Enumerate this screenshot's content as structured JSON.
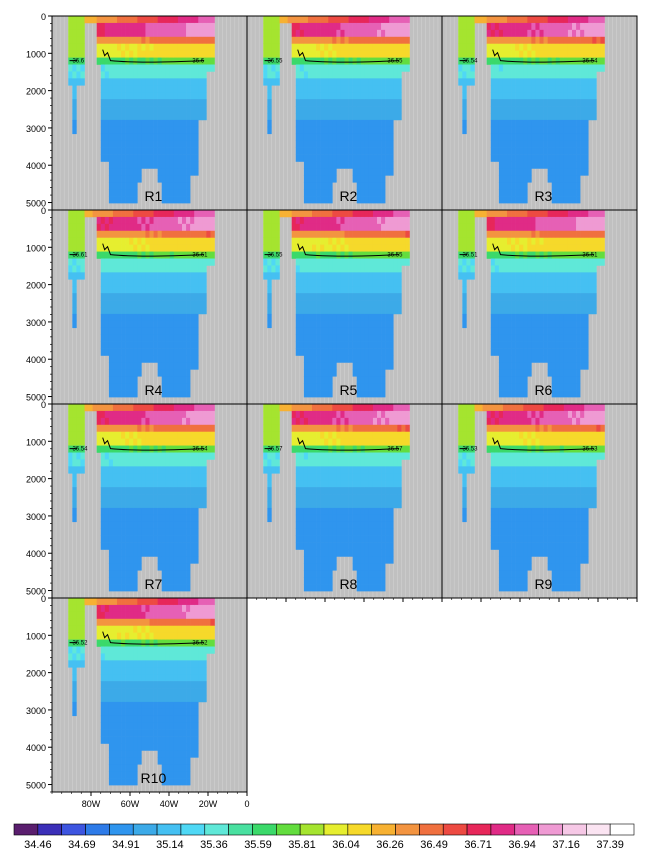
{
  "chart_data": [
    {
      "type": "heatmap",
      "panel": "R1",
      "contour_value": "36.6",
      "row": 0,
      "col": 0
    },
    {
      "type": "heatmap",
      "panel": "R2",
      "contour_value": "36.55",
      "row": 0,
      "col": 1
    },
    {
      "type": "heatmap",
      "panel": "R3",
      "contour_value": "36.54",
      "row": 0,
      "col": 2
    },
    {
      "type": "heatmap",
      "panel": "R4",
      "contour_value": "36.61",
      "row": 1,
      "col": 0
    },
    {
      "type": "heatmap",
      "panel": "R5",
      "contour_value": "36.55",
      "row": 1,
      "col": 1
    },
    {
      "type": "heatmap",
      "panel": "R6",
      "contour_value": "36.51",
      "row": 1,
      "col": 2
    },
    {
      "type": "heatmap",
      "panel": "R7",
      "contour_value": "36.54",
      "row": 2,
      "col": 0
    },
    {
      "type": "heatmap",
      "panel": "R8",
      "contour_value": "36.57",
      "row": 2,
      "col": 1
    },
    {
      "type": "heatmap",
      "panel": "R9",
      "contour_value": "36.53",
      "row": 2,
      "col": 2
    },
    {
      "type": "heatmap",
      "panel": "R10",
      "contour_value": "36.52",
      "row": 3,
      "col": 0
    }
  ],
  "axes": {
    "y_ticks": [
      "0",
      "1000",
      "2000",
      "3000",
      "4000",
      "5000"
    ],
    "y_values": [
      0,
      1000,
      2000,
      3000,
      4000,
      5000
    ],
    "ylim": [
      0,
      5200
    ],
    "x_ticks": [
      "80W",
      "60W",
      "40W",
      "20W",
      "0"
    ],
    "x_values": [
      -80,
      -60,
      -40,
      -20,
      0
    ],
    "xlim": [
      -100,
      0
    ]
  },
  "colorbar": {
    "labels": [
      "34.46",
      "34.69",
      "34.91",
      "35.14",
      "35.36",
      "35.59",
      "35.81",
      "36.04",
      "36.26",
      "36.49",
      "36.71",
      "36.94",
      "37.16",
      "37.39"
    ],
    "colors": [
      "#5a1e6e",
      "#3b2fb8",
      "#3d55e0",
      "#2e7be8",
      "#2f95ee",
      "#3caae8",
      "#45c0f2",
      "#4fd8f5",
      "#5fe8d8",
      "#49e0a0",
      "#3bd96a",
      "#63dd3e",
      "#a5e42f",
      "#e6ee2f",
      "#f6d92a",
      "#f7b132",
      "#f39440",
      "#f0703f",
      "#ed4a42",
      "#e7275a",
      "#e02b86",
      "#e660b5",
      "#ef9ad3",
      "#f6c8e6",
      "#fbe4f2",
      "#ffffff"
    ]
  },
  "colors": {
    "land": "#c0c0c0",
    "grid": "#d8d8d8",
    "contour": "#000000"
  }
}
